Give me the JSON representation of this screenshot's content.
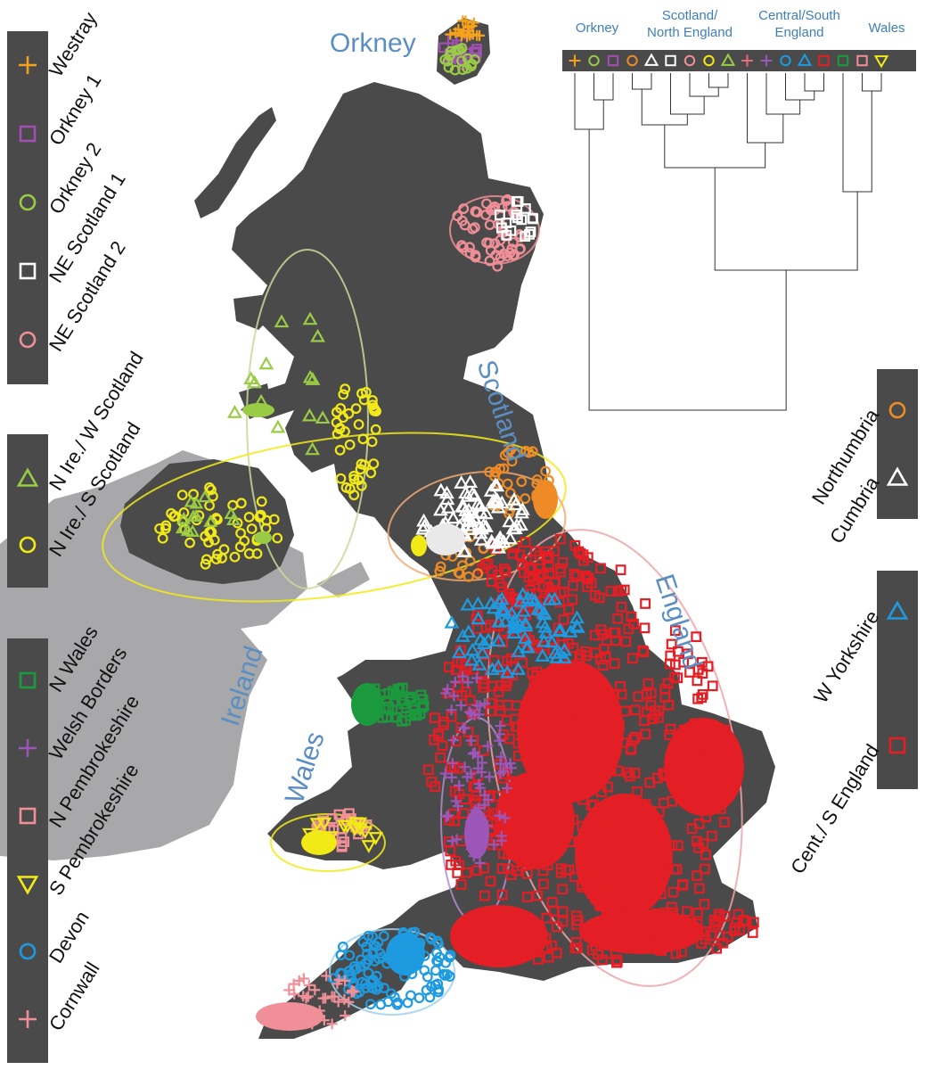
{
  "colors": {
    "land": "#4b4a4a",
    "ireland_republic": "#a8a8aa",
    "legend_bg": "#4a4a4a",
    "region_label": "#5b8ec2",
    "dendro_label": "#3f7fb9",
    "westray": "#f5a21b",
    "orkney1": "#a24fb5",
    "orkney2": "#9acb45",
    "ne_scotland1": "#ffffff",
    "ne_scotland2": "#f08f97",
    "n_ire_w_scotland": "#9acb45",
    "n_ire_s_scotland": "#f2ea17",
    "n_wales": "#1a9a3d",
    "welsh_borders": "#9b56b8",
    "n_pembrokeshire": "#f08f97",
    "s_pembrokeshire": "#f2ea17",
    "devon": "#1e9be0",
    "cornwall": "#f08f97",
    "northumbria": "#ee8b26",
    "cumbria": "#ffffff",
    "w_yorkshire": "#1e9be0",
    "cent_s_england": "#e31e24"
  },
  "regions": {
    "orkney": "Orkney",
    "scotland": "Scotland",
    "england": "England",
    "wales": "Wales",
    "ireland": "Ireland"
  },
  "legend_left_top": [
    {
      "id": "westray",
      "label": "Westray",
      "icon": "plus-marker",
      "color": "#f5a21b"
    },
    {
      "id": "orkney1",
      "label": "Orkney 1",
      "icon": "square-marker",
      "color": "#a24fb5"
    },
    {
      "id": "orkney2",
      "label": "Orkney 2",
      "icon": "circle-marker",
      "color": "#9acb45"
    },
    {
      "id": "ne_scotland1",
      "label": "NE Scotland 1",
      "icon": "square-marker",
      "color": "#ffffff"
    },
    {
      "id": "ne_scotland2",
      "label": "NE Scotland 2",
      "icon": "circle-marker",
      "color": "#f08f97"
    }
  ],
  "legend_left_mid": [
    {
      "id": "n_ire_w_scotland",
      "label": "N Ire./ W Scotland",
      "icon": "triangle-marker",
      "color": "#9acb45"
    },
    {
      "id": "n_ire_s_scotland",
      "label": "N Ire./ S Scotland",
      "icon": "circle-marker",
      "color": "#f2ea17"
    }
  ],
  "legend_left_bottom": [
    {
      "id": "n_wales",
      "label": "N Wales",
      "icon": "square-marker",
      "color": "#1a9a3d"
    },
    {
      "id": "welsh_borders",
      "label": "Welsh Borders",
      "icon": "plus-marker",
      "color": "#9b56b8"
    },
    {
      "id": "n_pembrokeshire",
      "label": "N Pembrokeshire",
      "icon": "square-marker",
      "color": "#f08f97"
    },
    {
      "id": "s_pembrokeshire",
      "label": "S Pembrokeshire",
      "icon": "inverted-triangle-marker",
      "color": "#f2ea17"
    },
    {
      "id": "devon",
      "label": "Devon",
      "icon": "circle-marker",
      "color": "#1e9be0"
    },
    {
      "id": "cornwall",
      "label": "Cornwall",
      "icon": "plus-marker",
      "color": "#f08f97"
    }
  ],
  "legend_right_top": [
    {
      "id": "northumbria",
      "label": "Northumbria",
      "icon": "circle-marker",
      "color": "#ee8b26"
    },
    {
      "id": "cumbria",
      "label": "Cumbria",
      "icon": "triangle-marker",
      "color": "#ffffff"
    }
  ],
  "legend_right_bottom": [
    {
      "id": "w_yorkshire",
      "label": "W Yorkshire",
      "icon": "triangle-marker",
      "color": "#1e9be0"
    },
    {
      "id": "cent_s_england",
      "label": "Cent./ S England",
      "icon": "square-marker",
      "color": "#e31e24"
    }
  ],
  "dendrogram": {
    "groups": [
      {
        "label": "Orkney"
      },
      {
        "label": "Scotland/\nNorth England"
      },
      {
        "label": "Central/South\nEngland"
      },
      {
        "label": "Wales"
      }
    ],
    "leaves": [
      {
        "icon": "plus-marker",
        "color": "#f5a21b"
      },
      {
        "icon": "circle-marker",
        "color": "#9acb45"
      },
      {
        "icon": "square-marker",
        "color": "#a24fb5"
      },
      {
        "icon": "circle-marker",
        "color": "#ee8b26"
      },
      {
        "icon": "triangle-marker",
        "color": "#ffffff"
      },
      {
        "icon": "square-marker",
        "color": "#ffffff"
      },
      {
        "icon": "circle-marker",
        "color": "#f08f97"
      },
      {
        "icon": "circle-marker",
        "color": "#f2ea17"
      },
      {
        "icon": "triangle-marker",
        "color": "#9acb45"
      },
      {
        "icon": "plus-marker",
        "color": "#e96a78"
      },
      {
        "icon": "plus-marker",
        "color": "#9b56b8"
      },
      {
        "icon": "circle-marker",
        "color": "#1e9be0"
      },
      {
        "icon": "triangle-marker",
        "color": "#1e9be0"
      },
      {
        "icon": "square-marker",
        "color": "#e31e24"
      },
      {
        "icon": "square-marker",
        "color": "#1a9a3d"
      },
      {
        "icon": "square-marker",
        "color": "#f08f97"
      },
      {
        "icon": "inverted-triangle-marker",
        "color": "#f2ea17"
      }
    ]
  }
}
